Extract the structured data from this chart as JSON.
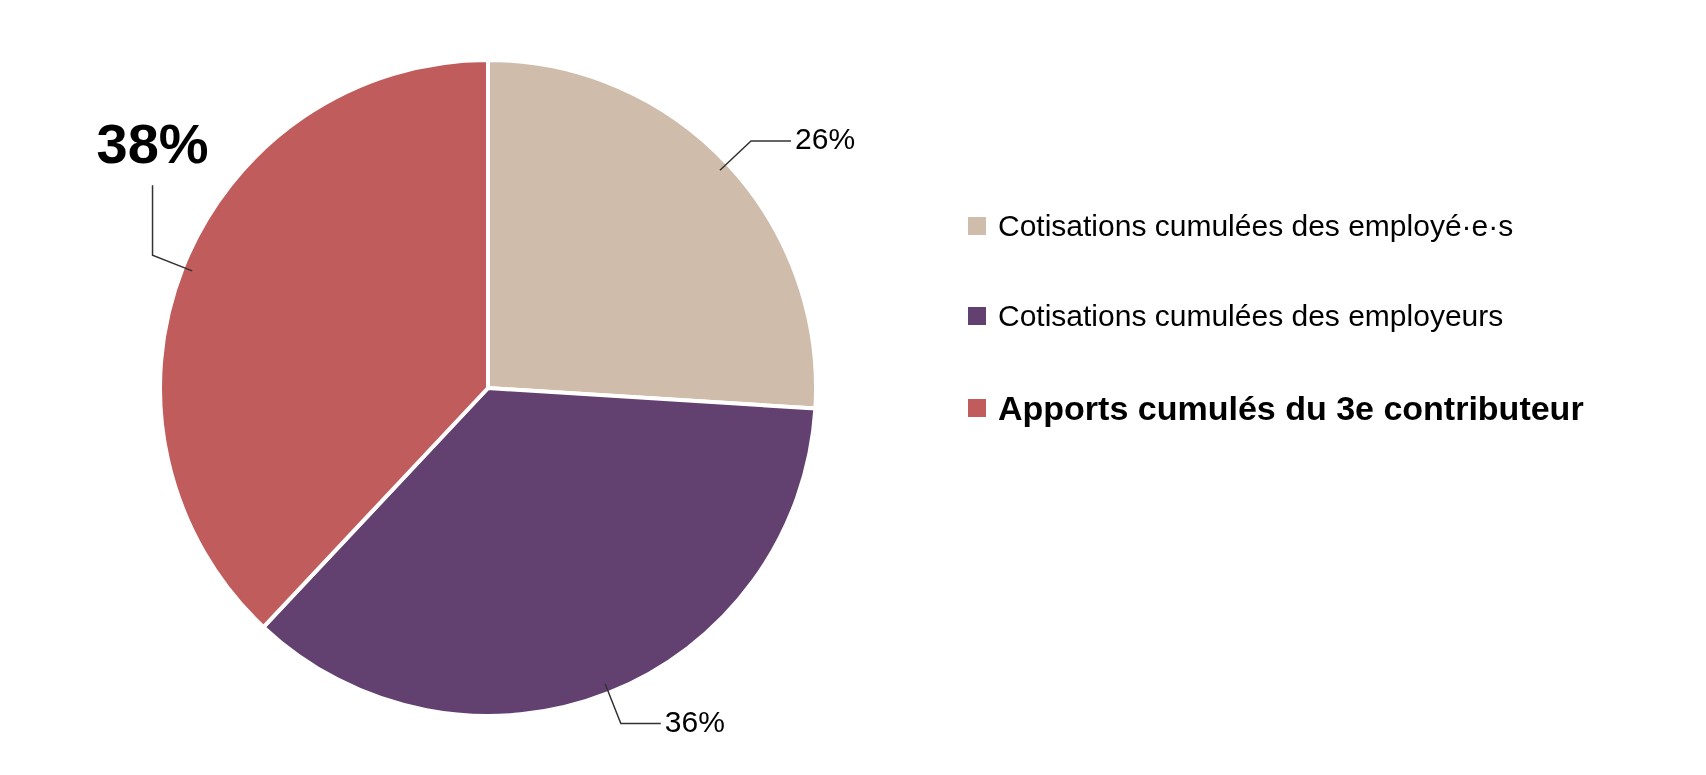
{
  "chart_data": {
    "type": "pie",
    "categories": [
      "Cotisations cumulées des employé·e·s",
      "Cotisations cumulées des employeurs",
      "Apports cumulés du 3e contributeur"
    ],
    "values": [
      26,
      36,
      38
    ],
    "colors": [
      "#cfbcab",
      "#624171",
      "#c05c5c"
    ],
    "value_labels": [
      "26%",
      "36%",
      "38%"
    ],
    "legend": "right"
  }
}
